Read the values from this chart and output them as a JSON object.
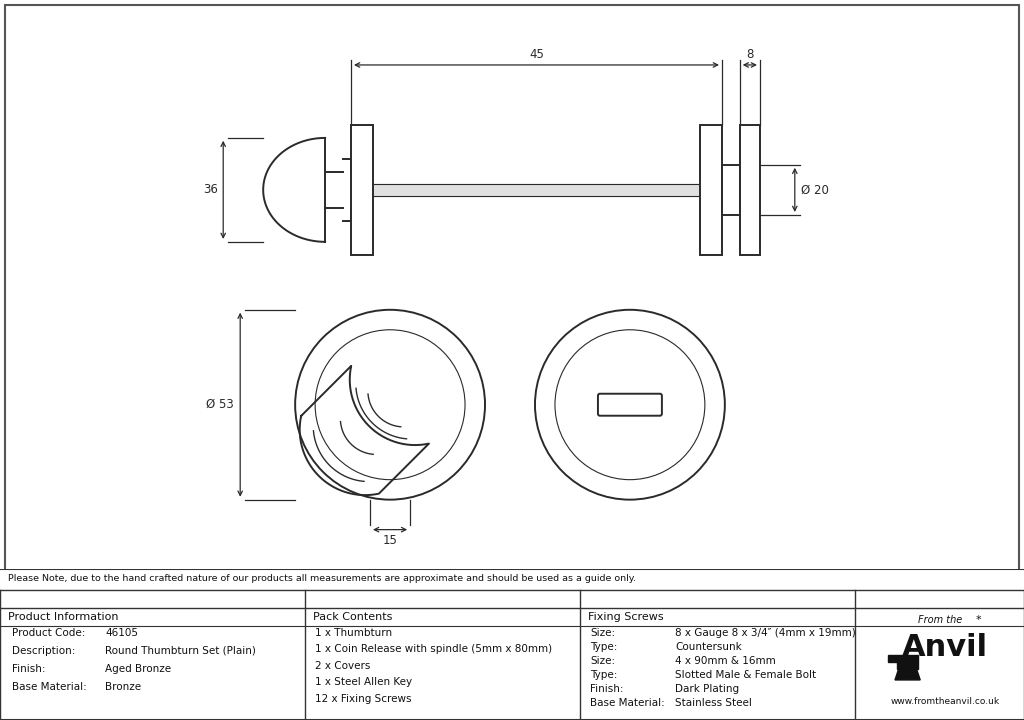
{
  "bg_color": "#ffffff",
  "drawing_bg": "#ffffff",
  "line_color": "#2a2a2a",
  "dim_color": "#2a2a2a",
  "note_text": "Please Note, due to the hand crafted nature of our products all measurements are approximate and should be used as a guide only.",
  "product_info": [
    [
      "Product Code:",
      "46105"
    ],
    [
      "Description:",
      "Round Thumbturn Set (Plain)"
    ],
    [
      "Finish:",
      "Aged Bronze"
    ],
    [
      "Base Material:",
      "Bronze"
    ]
  ],
  "pack_contents": [
    "1 x Thumbturn",
    "1 x Coin Release with spindle (5mm x 80mm)",
    "2 x Covers",
    "1 x Steel Allen Key",
    "12 x Fixing Screws"
  ],
  "fixing_screws": [
    [
      "Size:",
      "8 x Gauge 8 x 3/4″ (4mm x 19mm)"
    ],
    [
      "Type:",
      "Countersunk"
    ],
    [
      "Size:",
      "4 x 90mm & 16mm"
    ],
    [
      "Type:",
      "Slotted Male & Female Bolt"
    ],
    [
      "Finish:",
      "Dark Plating"
    ],
    [
      "Base Material:",
      "Stainless Steel"
    ]
  ],
  "dim_45": "45",
  "dim_8": "8",
  "dim_36": "36",
  "dim_20": "Ø 20",
  "dim_53": "Ø 53",
  "dim_15": "15"
}
